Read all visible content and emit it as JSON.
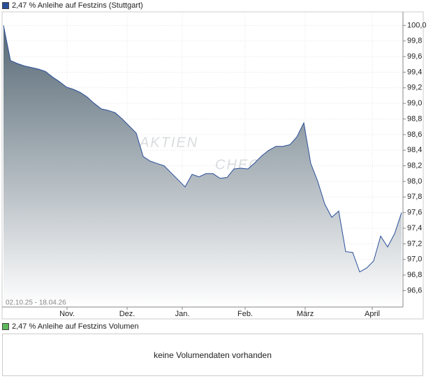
{
  "chart_data": {
    "type": "area",
    "series": [
      {
        "name": "2,47 % Anleihe auf Festzins (Stuttgart)",
        "color": "#2a4f9a",
        "values": [
          100.0,
          99.55,
          99.51,
          99.48,
          99.46,
          99.44,
          99.41,
          99.34,
          99.28,
          99.21,
          99.18,
          99.14,
          99.08,
          99.0,
          98.93,
          98.91,
          98.88,
          98.8,
          98.71,
          98.62,
          98.32,
          98.26,
          98.23,
          98.2,
          98.11,
          98.02,
          97.93,
          98.09,
          98.06,
          98.1,
          98.1,
          98.04,
          98.05,
          98.16,
          98.17,
          98.16,
          98.24,
          98.33,
          98.4,
          98.45,
          98.45,
          98.47,
          98.57,
          98.75,
          98.23,
          98.0,
          97.71,
          97.54,
          97.62,
          97.1,
          97.09,
          96.84,
          96.89,
          96.98,
          97.3,
          97.16,
          97.33,
          97.6
        ]
      }
    ],
    "xlim": [
      0,
      57.2
    ],
    "xticks": [
      {
        "value": 9.1,
        "label": "Nov."
      },
      {
        "value": 17.7,
        "label": "Dez."
      },
      {
        "value": 25.6,
        "label": "Jan."
      },
      {
        "value": 34.6,
        "label": "Feb."
      },
      {
        "value": 43.2,
        "label": "März"
      },
      {
        "value": 52.8,
        "label": "April"
      }
    ],
    "ylim": [
      96.39,
      100.03
    ],
    "yticks": [
      {
        "value": 96.6,
        "label": "96,6"
      },
      {
        "value": 96.8,
        "label": "96,8"
      },
      {
        "value": 97.0,
        "label": "97,0"
      },
      {
        "value": 97.2,
        "label": "97,2"
      },
      {
        "value": 97.4,
        "label": "97,4"
      },
      {
        "value": 97.6,
        "label": "97,6"
      },
      {
        "value": 97.8,
        "label": "97,8"
      },
      {
        "value": 98.0,
        "label": "98,0"
      },
      {
        "value": 98.2,
        "label": "98,2"
      },
      {
        "value": 98.4,
        "label": "98,4"
      },
      {
        "value": 98.6,
        "label": "98,6"
      },
      {
        "value": 98.8,
        "label": "98,8"
      },
      {
        "value": 99.0,
        "label": "99,0"
      },
      {
        "value": 99.2,
        "label": "99,2"
      },
      {
        "value": 99.4,
        "label": "99,4"
      },
      {
        "value": 99.6,
        "label": "99,6"
      },
      {
        "value": 99.8,
        "label": "99,8"
      },
      {
        "value": 100.0,
        "label": "100,0"
      }
    ],
    "grid": true,
    "date_range": "02.10.25 - 18.04.26",
    "watermark": [
      "AKTIEN",
      "CHECK"
    ]
  },
  "volume_panel": {
    "legend": "2,47 % Anleihe auf Festzins Volumen",
    "legend_color": "#5cb85c",
    "message": "keine Volumendaten vorhanden"
  }
}
